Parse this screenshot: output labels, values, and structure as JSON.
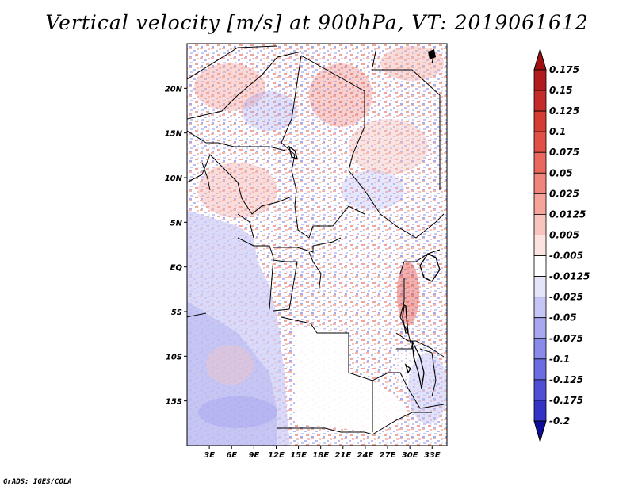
{
  "title": "Vertical velocity [m/s] at 900hPa, VT: 2019061612",
  "credit": "GrADS: IGES/COLA",
  "map": {
    "lon_range": [
      0,
      35
    ],
    "lat_range": [
      -20,
      25
    ],
    "lat_ticks": [
      {
        "value": 20,
        "label": "20N"
      },
      {
        "value": 15,
        "label": "15N"
      },
      {
        "value": 10,
        "label": "10N"
      },
      {
        "value": 5,
        "label": "5N"
      },
      {
        "value": 0,
        "label": "EQ"
      },
      {
        "value": -5,
        "label": "5S"
      },
      {
        "value": -10,
        "label": "10S"
      },
      {
        "value": -15,
        "label": "15S"
      }
    ],
    "lon_ticks": [
      {
        "value": 3,
        "label": "3E"
      },
      {
        "value": 6,
        "label": "6E"
      },
      {
        "value": 9,
        "label": "9E"
      },
      {
        "value": 12,
        "label": "12E"
      },
      {
        "value": 15,
        "label": "15E"
      },
      {
        "value": 18,
        "label": "18E"
      },
      {
        "value": 21,
        "label": "21E"
      },
      {
        "value": 24,
        "label": "24E"
      },
      {
        "value": 27,
        "label": "27E"
      },
      {
        "value": 30,
        "label": "30E"
      },
      {
        "value": 33,
        "label": "33E"
      }
    ]
  },
  "colorbar": {
    "levels": [
      {
        "label": "0.175",
        "color": "#b01c1c"
      },
      {
        "label": "0.15",
        "color": "#c42a27"
      },
      {
        "label": "0.125",
        "color": "#d43c34"
      },
      {
        "label": "0.1",
        "color": "#e15046"
      },
      {
        "label": "0.075",
        "color": "#e8685e"
      },
      {
        "label": "0.05",
        "color": "#ef857c"
      },
      {
        "label": "0.025",
        "color": "#f5a49c"
      },
      {
        "label": "0.0125",
        "color": "#f9c4be"
      },
      {
        "label": "0.005",
        "color": "#fde3e0"
      },
      {
        "label": "-0.005",
        "color": "#ffffff"
      },
      {
        "label": "-0.0125",
        "color": "#e4e4fb"
      },
      {
        "label": "-0.025",
        "color": "#c6c6f6"
      },
      {
        "label": "-0.05",
        "color": "#a8a8f0"
      },
      {
        "label": "-0.075",
        "color": "#8a8aea"
      },
      {
        "label": "-0.1",
        "color": "#6c6ce2"
      },
      {
        "label": "-0.125",
        "color": "#4f4fd6"
      },
      {
        "label": "-0.175",
        "color": "#3333c6"
      },
      {
        "label": "-0.2",
        "color": "#1a1ab0"
      }
    ],
    "top_color": "#a01010",
    "bottom_color": "#0e0e9a"
  }
}
